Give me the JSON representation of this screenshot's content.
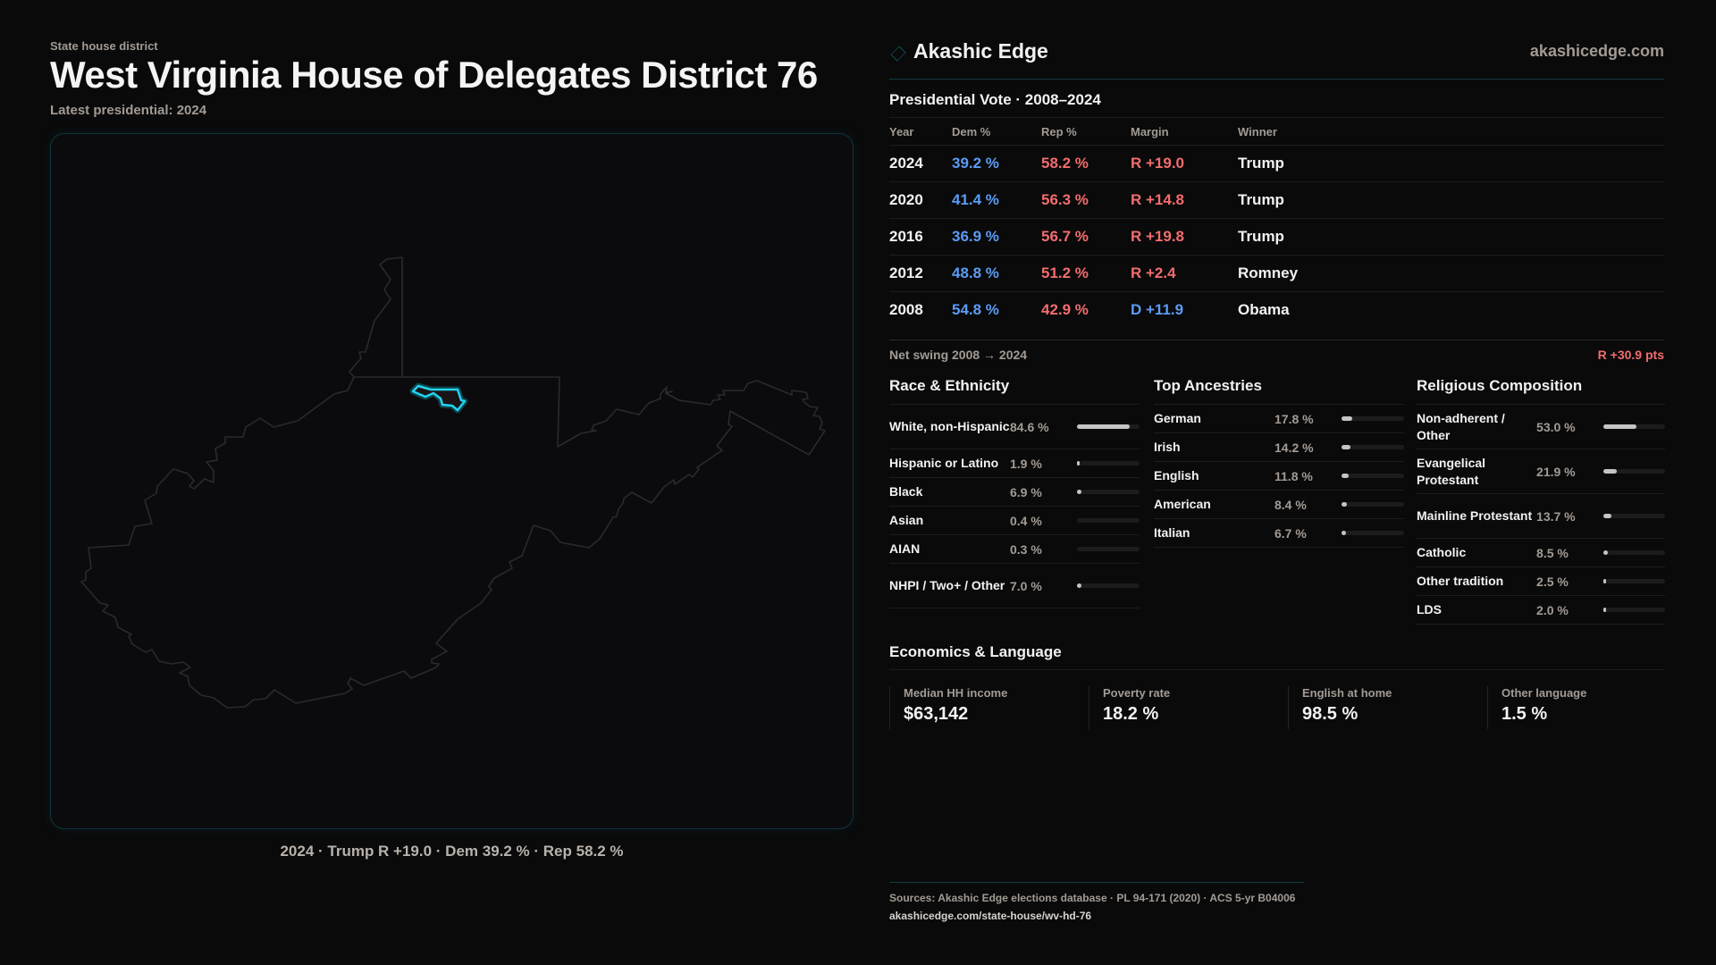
{
  "header": {
    "kicker": "State house district",
    "title": "West Virginia House of Delegates District 76",
    "latest": "Latest presidential: 2024"
  },
  "map": {
    "caption": "2024 · Trump R +19.0 · Dem 39.2 % · Rep 58.2 %",
    "highlight_color": "#22d3ee",
    "outline_color": "#2a2a2c"
  },
  "brand": {
    "name": "Akashic Edge",
    "site": "akashicedge.com",
    "icon": "diamond-icon"
  },
  "presidential": {
    "title": "Presidential Vote · 2008–2024",
    "headers": [
      "Year",
      "Dem %",
      "Rep %",
      "Margin",
      "Winner"
    ],
    "rows": [
      {
        "year": "2024",
        "dem": "39.2 %",
        "rep": "58.2 %",
        "margin": "R +19.0",
        "party": "R",
        "winner": "Trump"
      },
      {
        "year": "2020",
        "dem": "41.4 %",
        "rep": "56.3 %",
        "margin": "R +14.8",
        "party": "R",
        "winner": "Trump"
      },
      {
        "year": "2016",
        "dem": "36.9 %",
        "rep": "56.7 %",
        "margin": "R +19.8",
        "party": "R",
        "winner": "Trump"
      },
      {
        "year": "2012",
        "dem": "48.8 %",
        "rep": "51.2 %",
        "margin": "R +2.4",
        "party": "R",
        "winner": "Romney"
      },
      {
        "year": "2008",
        "dem": "54.8 %",
        "rep": "42.9 %",
        "margin": "D +11.9",
        "party": "D",
        "winner": "Obama"
      }
    ],
    "swing_label": "Net swing 2008 → 2024",
    "swing_value": "R +30.9 pts"
  },
  "sections": [
    {
      "title": "Race & Ethnicity",
      "items": [
        {
          "label": "White, non-Hispanic",
          "value": "84.6 %",
          "pct": 84.6
        },
        {
          "label": "Hispanic or Latino",
          "value": "1.9 %",
          "pct": 1.9
        },
        {
          "label": "Black",
          "value": "6.9 %",
          "pct": 6.9
        },
        {
          "label": "Asian",
          "value": "0.4 %",
          "pct": 0.4
        },
        {
          "label": "AIAN",
          "value": "0.3 %",
          "pct": 0.3
        },
        {
          "label": "NHPI / Two+ / Other",
          "value": "7.0 %",
          "pct": 7.0
        }
      ]
    },
    {
      "title": "Top Ancestries",
      "items": [
        {
          "label": "German",
          "value": "17.8 %",
          "pct": 17.8
        },
        {
          "label": "Irish",
          "value": "14.2 %",
          "pct": 14.2
        },
        {
          "label": "English",
          "value": "11.8 %",
          "pct": 11.8
        },
        {
          "label": "American",
          "value": "8.4 %",
          "pct": 8.4
        },
        {
          "label": "Italian",
          "value": "6.7 %",
          "pct": 6.7
        }
      ]
    },
    {
      "title": "Religious Composition",
      "items": [
        {
          "label": "Non-adherent / Other",
          "value": "53.0 %",
          "pct": 53.0
        },
        {
          "label": "Evangelical Protestant",
          "value": "21.9 %",
          "pct": 21.9
        },
        {
          "label": "Mainline Protestant",
          "value": "13.7 %",
          "pct": 13.7
        },
        {
          "label": "Catholic",
          "value": "8.5 %",
          "pct": 8.5
        },
        {
          "label": "Other tradition",
          "value": "2.5 %",
          "pct": 2.5
        },
        {
          "label": "LDS",
          "value": "2.0 %",
          "pct": 2.0
        }
      ]
    }
  ],
  "economics": {
    "title": "Economics & Language",
    "cards": [
      {
        "label": "Median HH income",
        "value": "$63,142"
      },
      {
        "label": "Poverty rate",
        "value": "18.2 %"
      },
      {
        "label": "English at home",
        "value": "98.5 %"
      },
      {
        "label": "Other language",
        "value": "1.5 %"
      }
    ]
  },
  "footer": {
    "sources": "Sources: Akashic Edge elections database · PL 94-171 (2020) · ACS 5-yr B04006",
    "url": "akashicedge.com/state-house/wv-hd-76"
  },
  "colors": {
    "dem": "#5b9cf5",
    "rep": "#f26d6d",
    "accent": "#22d3ee",
    "bar": "#c4c4c4"
  }
}
